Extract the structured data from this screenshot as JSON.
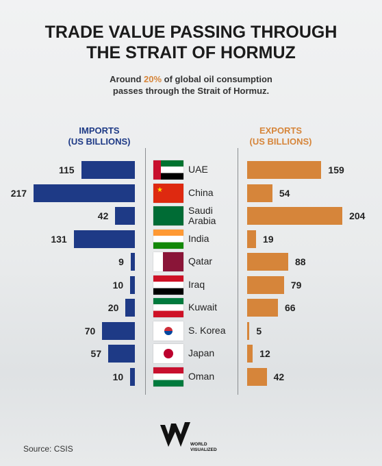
{
  "chart_data": {
    "type": "butterfly-bar",
    "title": "TRADE VALUE PASSING THROUGH THE STRAIT OF HORMUZ",
    "subtitle": {
      "before": "Around",
      "highlight": "20%",
      "after": "of global oil consumption passes through the Strait of Hormuz."
    },
    "categories": [
      "UAE",
      "China",
      "Saudi Arabia",
      "India",
      "Qatar",
      "Iraq",
      "Kuwait",
      "S. Korea",
      "Japan",
      "Oman"
    ],
    "series": [
      {
        "name": "IMPORTS",
        "unit": "(US BILLIONS)",
        "color": "#1e3a86",
        "values": [
          115,
          217,
          42,
          131,
          9,
          10,
          20,
          70,
          57,
          10
        ]
      },
      {
        "name": "EXPORTS",
        "unit": "(US BILLIONS)",
        "color": "#d6853a",
        "values": [
          159,
          54,
          204,
          19,
          88,
          79,
          66,
          5,
          12,
          42
        ]
      }
    ],
    "xlim": [
      0,
      220
    ],
    "source": "Source: CSIS",
    "brand": "WORLD VISUALIZED"
  }
}
